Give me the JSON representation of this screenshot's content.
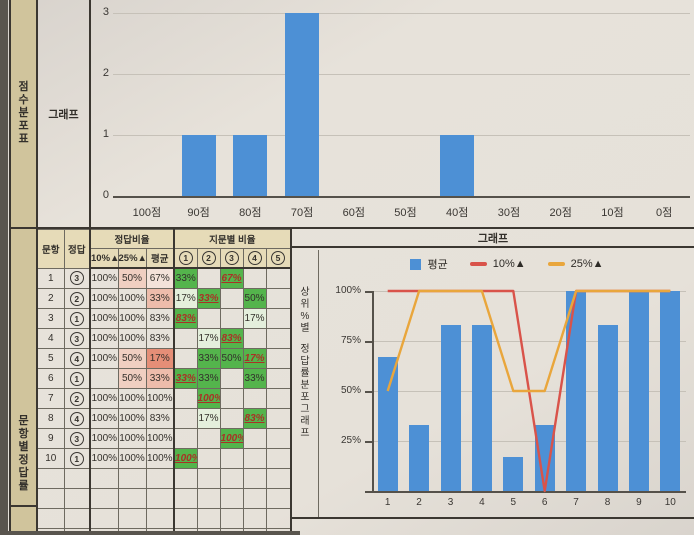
{
  "top_section": {
    "row_header": "점수분포표",
    "graph_label": "그래프"
  },
  "bottom_section": {
    "row_header": "문항별정답률",
    "table": {
      "header": {
        "question": "문항",
        "answer": "정답",
        "ratio_group": "정답비율",
        "choice_group": "지문별 비율",
        "ratio_cols": [
          "10%▲",
          "25%▲",
          "평균"
        ],
        "choice_cols": [
          "1",
          "2",
          "3",
          "4",
          "5"
        ]
      },
      "rows": [
        {
          "no": "1",
          "ans": "3",
          "r10": "100%",
          "r25": "50%",
          "avg": "67%",
          "r10_bg": "",
          "r25_bg": "p2",
          "avg_bg": "p1",
          "choices": [
            {
              "v": "33%",
              "s": "g"
            },
            {
              "v": "",
              "s": ""
            },
            {
              "v": "67%",
              "s": "c"
            },
            {
              "v": "",
              "s": ""
            },
            {
              "v": "",
              "s": ""
            }
          ]
        },
        {
          "no": "2",
          "ans": "2",
          "r10": "100%",
          "r25": "100%",
          "avg": "33%",
          "r10_bg": "",
          "r25_bg": "",
          "avg_bg": "p3",
          "choices": [
            {
              "v": "17%",
              "s": "p"
            },
            {
              "v": "33%",
              "s": "c"
            },
            {
              "v": "",
              "s": ""
            },
            {
              "v": "50%",
              "s": "g"
            },
            {
              "v": "",
              "s": ""
            }
          ]
        },
        {
          "no": "3",
          "ans": "1",
          "r10": "100%",
          "r25": "100%",
          "avg": "83%",
          "r10_bg": "",
          "r25_bg": "",
          "avg_bg": "",
          "choices": [
            {
              "v": "83%",
              "s": "c"
            },
            {
              "v": "",
              "s": ""
            },
            {
              "v": "",
              "s": ""
            },
            {
              "v": "17%",
              "s": "p"
            },
            {
              "v": "",
              "s": ""
            }
          ]
        },
        {
          "no": "4",
          "ans": "3",
          "r10": "100%",
          "r25": "100%",
          "avg": "83%",
          "r10_bg": "",
          "r25_bg": "",
          "avg_bg": "",
          "choices": [
            {
              "v": "",
              "s": ""
            },
            {
              "v": "17%",
              "s": "p"
            },
            {
              "v": "83%",
              "s": "c"
            },
            {
              "v": "",
              "s": ""
            },
            {
              "v": "",
              "s": ""
            }
          ]
        },
        {
          "no": "5",
          "ans": "4",
          "r10": "100%",
          "r25": "50%",
          "avg": "17%",
          "r10_bg": "",
          "r25_bg": "p2",
          "avg_bg": "p4",
          "choices": [
            {
              "v": "",
              "s": ""
            },
            {
              "v": "33%",
              "s": "g"
            },
            {
              "v": "50%",
              "s": "g"
            },
            {
              "v": "17%",
              "s": "c"
            },
            {
              "v": "",
              "s": ""
            }
          ]
        },
        {
          "no": "6",
          "ans": "1",
          "r10": "",
          "r25": "50%",
          "avg": "33%",
          "r10_bg": "",
          "r25_bg": "p2",
          "avg_bg": "p3",
          "choices": [
            {
              "v": "33%",
              "s": "c"
            },
            {
              "v": "33%",
              "s": "g"
            },
            {
              "v": "",
              "s": ""
            },
            {
              "v": "33%",
              "s": "g"
            },
            {
              "v": "",
              "s": ""
            }
          ]
        },
        {
          "no": "7",
          "ans": "2",
          "r10": "100%",
          "r25": "100%",
          "avg": "100%",
          "r10_bg": "",
          "r25_bg": "",
          "avg_bg": "",
          "choices": [
            {
              "v": "",
              "s": ""
            },
            {
              "v": "100%",
              "s": "c"
            },
            {
              "v": "",
              "s": ""
            },
            {
              "v": "",
              "s": ""
            },
            {
              "v": "",
              "s": ""
            }
          ]
        },
        {
          "no": "8",
          "ans": "4",
          "r10": "100%",
          "r25": "100%",
          "avg": "83%",
          "r10_bg": "",
          "r25_bg": "",
          "avg_bg": "",
          "choices": [
            {
              "v": "",
              "s": ""
            },
            {
              "v": "17%",
              "s": "p"
            },
            {
              "v": "",
              "s": ""
            },
            {
              "v": "83%",
              "s": "c"
            },
            {
              "v": "",
              "s": ""
            }
          ]
        },
        {
          "no": "9",
          "ans": "3",
          "r10": "100%",
          "r25": "100%",
          "avg": "100%",
          "r10_bg": "",
          "r25_bg": "",
          "avg_bg": "",
          "choices": [
            {
              "v": "",
              "s": ""
            },
            {
              "v": "",
              "s": ""
            },
            {
              "v": "100%",
              "s": "c"
            },
            {
              "v": "",
              "s": ""
            },
            {
              "v": "",
              "s": ""
            }
          ]
        },
        {
          "no": "10",
          "ans": "1",
          "r10": "100%",
          "r25": "100%",
          "avg": "100%",
          "r10_bg": "",
          "r25_bg": "",
          "avg_bg": "",
          "choices": [
            {
              "v": "100%",
              "s": "c"
            },
            {
              "v": "",
              "s": ""
            },
            {
              "v": "",
              "s": ""
            },
            {
              "v": "",
              "s": ""
            },
            {
              "v": "",
              "s": ""
            }
          ]
        }
      ]
    },
    "right": {
      "header": "그래프",
      "side_label": "상위%별 정답률분포그래프"
    }
  },
  "chart_data": [
    {
      "type": "bar",
      "title": "점수분포표 그래프",
      "categories": [
        "100점",
        "90점",
        "80점",
        "70점",
        "60점",
        "50점",
        "40점",
        "30점",
        "20점",
        "10점",
        "0점"
      ],
      "values": [
        0,
        1,
        1,
        3,
        0,
        0,
        1,
        0,
        0,
        0,
        0
      ],
      "xlabel": "",
      "ylabel": "",
      "ylim": [
        0,
        3
      ],
      "yticks": [
        0,
        1,
        2,
        3
      ],
      "grid": true,
      "legend_position": "none",
      "bar_color": "#4d90d5"
    },
    {
      "type": "combo",
      "title": "상위%별 정답률분포그래프",
      "categories": [
        "1",
        "2",
        "3",
        "4",
        "5",
        "6",
        "7",
        "8",
        "9",
        "10"
      ],
      "series": [
        {
          "name": "평균",
          "kind": "bar",
          "color": "#4d90d5",
          "values": [
            67,
            33,
            83,
            83,
            17,
            33,
            100,
            83,
            100,
            100
          ]
        },
        {
          "name": "10%▲",
          "kind": "line",
          "color": "#d9534a",
          "values": [
            100,
            100,
            100,
            100,
            100,
            0,
            100,
            100,
            100,
            100
          ]
        },
        {
          "name": "25%▲",
          "kind": "line",
          "color": "#e9a63c",
          "values": [
            50,
            100,
            100,
            100,
            50,
            50,
            100,
            100,
            100,
            100
          ]
        }
      ],
      "xlabel": "",
      "ylabel": "",
      "ylim": [
        0,
        100
      ],
      "ytick_labels": [
        "25%",
        "50%",
        "75%",
        "100%"
      ],
      "grid": true,
      "legend_position": "top"
    }
  ],
  "colors": {
    "bar_blue": "#4d90d5",
    "line_red": "#d9534a",
    "line_orange": "#e9a63c",
    "green_cell": "#54b44c",
    "pale_green_cell": "#e4efdc",
    "sidebar_tan": "#d0c49c",
    "header_tan": "#e6dbb8",
    "pink_faint": "#f3e2d9",
    "pink_light": "#f0cfc1",
    "pink_mid": "#edbcab",
    "salmon": "#e58e77",
    "red_text": "#a93226"
  }
}
